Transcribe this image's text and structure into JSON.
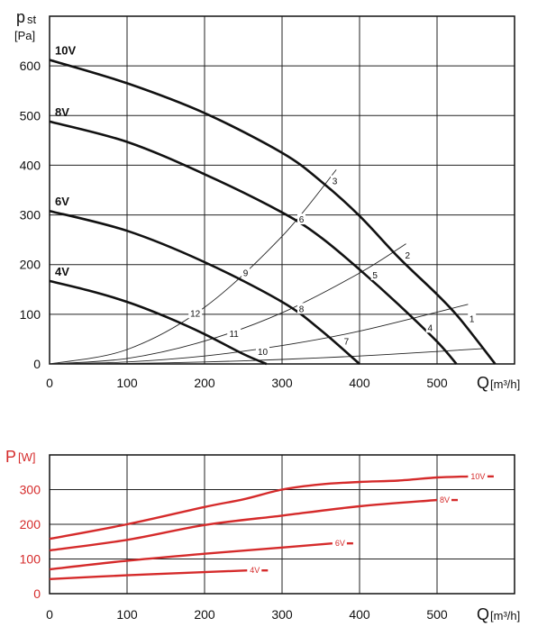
{
  "chart_data": [
    {
      "type": "line",
      "ylabel_main": "p",
      "ylabel_sub": "st",
      "ylabel_unit": "[Pa]",
      "xlabel_main": "Q",
      "xlabel_unit": "[m³/h]",
      "xlim": [
        0,
        600
      ],
      "ylim": [
        0,
        700
      ],
      "xticks": [
        "0",
        "100",
        "200",
        "300",
        "400",
        "500"
      ],
      "yticks": [
        "0",
        "100",
        "200",
        "300",
        "400",
        "500",
        "600"
      ],
      "grid": true,
      "series": [
        {
          "name": "10V",
          "x": [
            0,
            100,
            200,
            300,
            350,
            400,
            450,
            500,
            530,
            575
          ],
          "y": [
            612,
            565,
            505,
            425,
            368,
            298,
            215,
            140,
            90,
            0
          ]
        },
        {
          "name": "8V",
          "x": [
            0,
            100,
            200,
            300,
            350,
            400,
            450,
            500,
            525
          ],
          "y": [
            488,
            447,
            382,
            305,
            255,
            190,
            120,
            45,
            0
          ]
        },
        {
          "name": "6V",
          "x": [
            0,
            100,
            200,
            300,
            350,
            400
          ],
          "y": [
            308,
            268,
            205,
            125,
            68,
            0
          ]
        },
        {
          "name": "4V",
          "x": [
            0,
            50,
            100,
            150,
            200,
            250,
            280
          ],
          "y": [
            167,
            148,
            125,
            95,
            60,
            20,
            0
          ]
        }
      ],
      "system_curves": [
        {
          "x": [
            0,
            100,
            200,
            300,
            370
          ],
          "y": [
            0,
            29,
            114,
            257,
            391
          ]
        },
        {
          "x": [
            0,
            100,
            200,
            300,
            400,
            460
          ],
          "y": [
            0,
            11,
            46,
            103,
            183,
            242
          ]
        },
        {
          "x": [
            0,
            100,
            200,
            300,
            400,
            540
          ],
          "y": [
            0,
            4,
            16,
            37,
            66,
            120
          ]
        },
        {
          "x": [
            0,
            100,
            200,
            300,
            400,
            500,
            560
          ],
          "y": [
            0,
            1,
            4,
            9,
            16,
            25,
            31
          ]
        }
      ],
      "operating_points": [
        {
          "label": "1",
          "x": 545,
          "y": 90
        },
        {
          "label": "2",
          "x": 462,
          "y": 218
        },
        {
          "label": "3",
          "x": 368,
          "y": 367
        },
        {
          "label": "4",
          "x": 491,
          "y": 72
        },
        {
          "label": "5",
          "x": 420,
          "y": 178
        },
        {
          "label": "6",
          "x": 325,
          "y": 290
        },
        {
          "label": "7",
          "x": 383,
          "y": 44
        },
        {
          "label": "8",
          "x": 325,
          "y": 110
        },
        {
          "label": "9",
          "x": 253,
          "y": 182
        },
        {
          "label": "10",
          "x": 275,
          "y": 24
        },
        {
          "label": "11",
          "x": 238,
          "y": 60
        },
        {
          "label": "12",
          "x": 188,
          "y": 101
        }
      ]
    },
    {
      "type": "line",
      "ylabel_main": "P",
      "ylabel_unit": "[W]",
      "xlabel_main": "Q",
      "xlabel_unit": "[m³/h]",
      "xlim": [
        0,
        600
      ],
      "ylim": [
        0,
        400
      ],
      "xticks": [
        "0",
        "100",
        "200",
        "300",
        "400",
        "500"
      ],
      "yticks": [
        "0",
        "100",
        "200",
        "300"
      ],
      "grid": true,
      "color": "#d52b2b",
      "series": [
        {
          "name": "10V",
          "x": [
            0,
            100,
            200,
            250,
            300,
            350,
            400,
            450,
            500,
            540
          ],
          "y": [
            158,
            200,
            250,
            272,
            300,
            315,
            322,
            326,
            335,
            338
          ]
        },
        {
          "name": "8V",
          "x": [
            0,
            100,
            200,
            300,
            400,
            500
          ],
          "y": [
            125,
            155,
            198,
            225,
            252,
            270
          ]
        },
        {
          "name": "6V",
          "x": [
            0,
            100,
            200,
            300,
            365
          ],
          "y": [
            70,
            95,
            115,
            133,
            145
          ]
        },
        {
          "name": "4V",
          "x": [
            0,
            100,
            200,
            255
          ],
          "y": [
            42,
            53,
            62,
            67
          ]
        }
      ]
    }
  ]
}
